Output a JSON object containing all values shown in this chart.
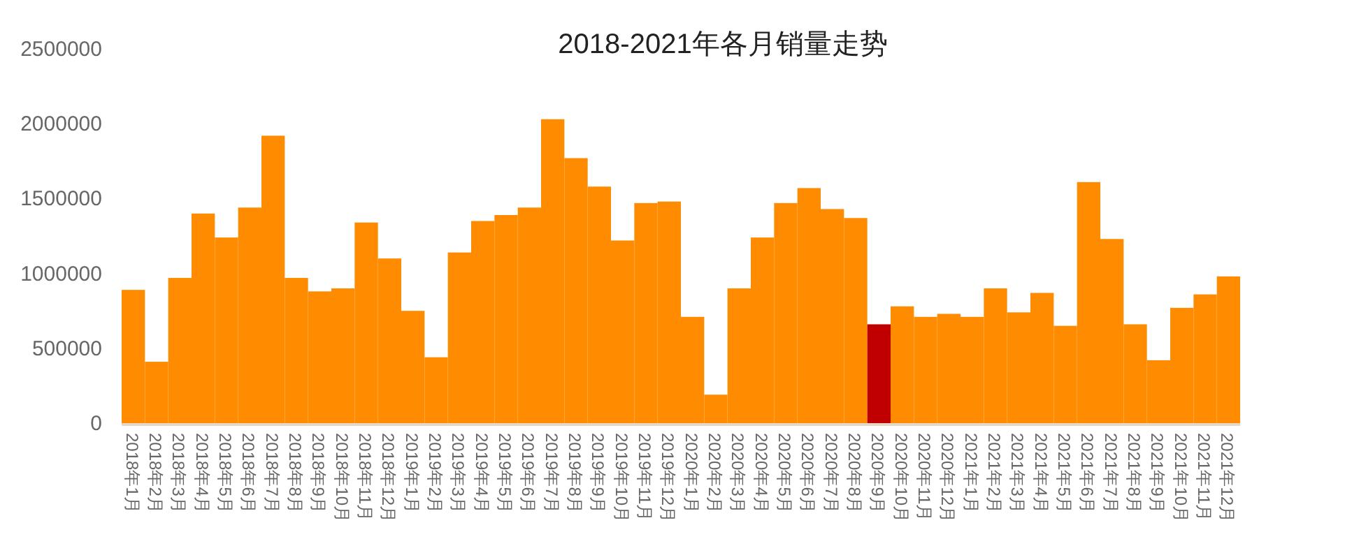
{
  "chart_data": {
    "type": "bar",
    "title": "2018-2021年各月销量走势",
    "categories": [
      "2018年1月",
      "2018年2月",
      "2018年3月",
      "2018年4月",
      "2018年5月",
      "2018年6月",
      "2018年7月",
      "2018年8月",
      "2018年9月",
      "2018年10月",
      "2018年11月",
      "2018年12月",
      "2019年1月",
      "2019年2月",
      "2019年3月",
      "2019年4月",
      "2019年5月",
      "2019年6月",
      "2019年7月",
      "2019年8月",
      "2019年9月",
      "2019年10月",
      "2019年11月",
      "2019年12月",
      "2020年1月",
      "2020年2月",
      "2020年3月",
      "2020年4月",
      "2020年5月",
      "2020年6月",
      "2020年7月",
      "2020年8月",
      "2020年9月",
      "2020年10月",
      "2020年11月",
      "2020年12月",
      "2021年1月",
      "2021年2月",
      "2021年3月",
      "2021年4月",
      "2021年5月",
      "2021年6月",
      "2021年7月",
      "2021年8月",
      "2021年9月",
      "2021年10月",
      "2021年11月",
      "2021年12月"
    ],
    "values": [
      890000,
      410000,
      970000,
      1400000,
      1240000,
      1440000,
      1920000,
      970000,
      880000,
      900000,
      1340000,
      1100000,
      750000,
      440000,
      1140000,
      1350000,
      1390000,
      1440000,
      2030000,
      1770000,
      1580000,
      1220000,
      1470000,
      1480000,
      710000,
      190000,
      900000,
      1240000,
      1470000,
      1570000,
      1430000,
      1370000,
      660000,
      780000,
      710000,
      730000,
      710000,
      900000,
      740000,
      870000,
      650000,
      1610000,
      1230000,
      660000,
      420000,
      770000,
      860000,
      980000
    ],
    "colors": [
      "#ff8c00",
      "#ff8c00",
      "#ff8c00",
      "#ff8c00",
      "#ff8c00",
      "#ff8c00",
      "#ff8c00",
      "#ff8c00",
      "#ff8c00",
      "#ff8c00",
      "#ff8c00",
      "#ff8c00",
      "#ff8c00",
      "#ff8c00",
      "#ff8c00",
      "#ff8c00",
      "#ff8c00",
      "#ff8c00",
      "#ff8c00",
      "#ff8c00",
      "#ff8c00",
      "#ff8c00",
      "#ff8c00",
      "#ff8c00",
      "#ff8c00",
      "#ff8c00",
      "#ff8c00",
      "#ff8c00",
      "#ff8c00",
      "#ff8c00",
      "#ff8c00",
      "#ff8c00",
      "#c00000",
      "#ff8c00",
      "#ff8c00",
      "#ff8c00",
      "#ff8c00",
      "#ff8c00",
      "#ff8c00",
      "#ff8c00",
      "#ff8c00",
      "#ff8c00",
      "#ff8c00",
      "#ff8c00",
      "#ff8c00",
      "#ff8c00",
      "#ff8c00",
      "#ff8c00"
    ],
    "ylim": [
      0,
      2500000
    ],
    "yticks": [
      0,
      500000,
      1000000,
      1500000,
      2000000,
      2500000
    ]
  }
}
